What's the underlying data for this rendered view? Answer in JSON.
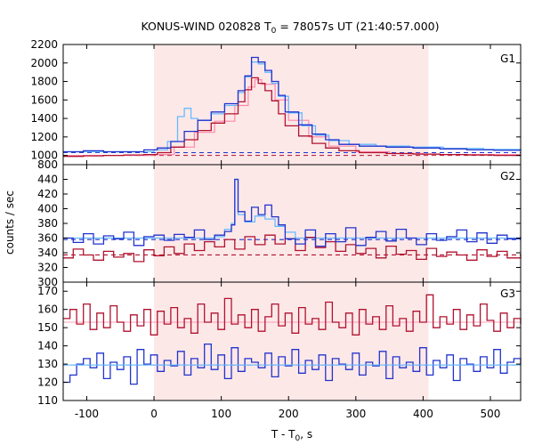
{
  "chart_data": {
    "type": "line",
    "title_main": "KONUS-WIND 020828 T",
    "title_sub": "0",
    "title_rest": " = 78057s UT (21:40:57.000)",
    "xlabel_main": "T - T",
    "xlabel_sub": "0",
    "xlabel_rest": ", s",
    "ylabel": "counts / sec",
    "xlim": [
      -135,
      545
    ],
    "xticks": [
      -100,
      0,
      100,
      200,
      300,
      400,
      500
    ],
    "interval_shading": [
      0,
      408
    ],
    "colors": {
      "shade": "#fde8e8",
      "dark_red": "#b0122e",
      "blue": "#2233cc",
      "light_blue": "#66bbff",
      "pink": "#ff88aa"
    },
    "panels": [
      {
        "label": "G1",
        "ylim": [
          900,
          2200
        ],
        "yticks": [
          1000,
          1200,
          1400,
          1600,
          1800,
          2000,
          2200
        ],
        "bottom_tick_label": "800",
        "blue_background": 1030,
        "red_background": 1000,
        "blue_counts": {
          "x": [
            -135,
            -105,
            -75,
            -45,
            -15,
            5,
            25,
            45,
            65,
            85,
            105,
            125,
            135,
            145,
            155,
            165,
            175,
            185,
            195,
            215,
            235,
            255,
            275,
            305,
            345,
            385,
            425,
            465,
            505,
            545
          ],
          "y": [
            1040,
            1050,
            1040,
            1040,
            1060,
            1080,
            1150,
            1260,
            1380,
            1470,
            1560,
            1700,
            1860,
            2060,
            2010,
            1920,
            1800,
            1650,
            1470,
            1330,
            1230,
            1170,
            1120,
            1100,
            1090,
            1080,
            1070,
            1060,
            1055,
            1050
          ]
        },
        "light_blue_model": {
          "x": [
            -135,
            0,
            20,
            35,
            45,
            55,
            65,
            85,
            105,
            125,
            135,
            145,
            155,
            165,
            175,
            185,
            200,
            220,
            240,
            260,
            290,
            330,
            380,
            430,
            490,
            545
          ],
          "y": [
            1040,
            1060,
            1150,
            1420,
            1510,
            1400,
            1380,
            1450,
            1540,
            1680,
            1850,
            2010,
            1990,
            1900,
            1780,
            1640,
            1460,
            1320,
            1220,
            1160,
            1120,
            1100,
            1090,
            1075,
            1065,
            1060
          ]
        },
        "red_counts": {
          "x": [
            -135,
            -105,
            -75,
            -45,
            -15,
            5,
            25,
            45,
            65,
            85,
            105,
            125,
            135,
            145,
            155,
            165,
            175,
            185,
            195,
            215,
            235,
            255,
            275,
            305,
            345,
            385,
            425,
            465,
            505,
            545
          ],
          "y": [
            990,
            995,
            1000,
            1005,
            1010,
            1030,
            1090,
            1170,
            1270,
            1350,
            1450,
            1580,
            1710,
            1840,
            1780,
            1700,
            1590,
            1450,
            1320,
            1210,
            1130,
            1080,
            1050,
            1030,
            1020,
            1015,
            1010,
            1005,
            1000,
            995
          ]
        },
        "pink_model": {
          "x": [
            -135,
            0,
            30,
            60,
            90,
            120,
            140,
            150,
            160,
            180,
            200,
            230,
            260,
            300,
            350,
            400,
            545
          ],
          "y": [
            1000,
            1010,
            1090,
            1250,
            1370,
            1540,
            1740,
            1820,
            1770,
            1600,
            1380,
            1200,
            1100,
            1040,
            1020,
            1010,
            1000
          ]
        }
      },
      {
        "label": "G2",
        "ylim": [
          300,
          460
        ],
        "yticks": [
          300,
          320,
          340,
          360,
          380,
          400,
          420,
          440
        ],
        "blue_background": 358,
        "red_background": 337,
        "blue_counts": {
          "x": [
            -135,
            -120,
            -105,
            -90,
            -75,
            -60,
            -45,
            -30,
            -15,
            0,
            15,
            30,
            45,
            60,
            75,
            90,
            105,
            115,
            120,
            125,
            135,
            145,
            155,
            165,
            175,
            185,
            195,
            210,
            225,
            240,
            255,
            270,
            285,
            300,
            315,
            330,
            345,
            360,
            375,
            390,
            405,
            420,
            435,
            450,
            465,
            480,
            495,
            510,
            525,
            545
          ],
          "y": [
            360,
            354,
            366,
            352,
            363,
            359,
            368,
            350,
            362,
            364,
            357,
            365,
            361,
            371,
            358,
            364,
            369,
            378,
            440,
            396,
            383,
            402,
            392,
            405,
            389,
            378,
            359,
            352,
            371,
            349,
            366,
            355,
            374,
            350,
            361,
            369,
            356,
            372,
            360,
            351,
            366,
            357,
            362,
            371,
            355,
            367,
            353,
            364,
            359,
            362
          ]
        },
        "light_blue_model": {
          "x": [
            -135,
            0,
            90,
            105,
            115,
            120,
            125,
            135,
            150,
            165,
            180,
            195,
            210,
            300,
            400,
            545
          ],
          "y": [
            360,
            360,
            362,
            372,
            380,
            440,
            392,
            382,
            390,
            386,
            376,
            368,
            360,
            360,
            360,
            360
          ]
        },
        "red_counts": {
          "x": [
            -135,
            -120,
            -105,
            -90,
            -75,
            -60,
            -45,
            -30,
            -15,
            0,
            15,
            30,
            45,
            60,
            75,
            90,
            105,
            120,
            135,
            150,
            165,
            180,
            195,
            210,
            225,
            240,
            255,
            270,
            285,
            300,
            315,
            330,
            345,
            360,
            375,
            390,
            405,
            420,
            435,
            450,
            465,
            480,
            495,
            510,
            525,
            545
          ],
          "y": [
            333,
            345,
            337,
            330,
            342,
            334,
            339,
            328,
            344,
            336,
            348,
            339,
            352,
            343,
            355,
            348,
            358,
            345,
            362,
            351,
            364,
            352,
            359,
            343,
            361,
            347,
            355,
            342,
            351,
            339,
            346,
            333,
            349,
            338,
            343,
            331,
            346,
            335,
            341,
            337,
            330,
            344,
            335,
            342,
            333,
            338
          ]
        }
      },
      {
        "label": "G3",
        "ylim": [
          110,
          175
        ],
        "yticks": [
          110,
          120,
          130,
          140,
          150,
          160,
          170
        ],
        "blue_background": 129.5,
        "red_background": 153,
        "blue_counts": {
          "x": [
            -135,
            -125,
            -115,
            -105,
            -95,
            -85,
            -75,
            -65,
            -55,
            -45,
            -35,
            -25,
            -15,
            -5,
            5,
            15,
            25,
            35,
            45,
            55,
            65,
            75,
            85,
            95,
            105,
            115,
            125,
            135,
            145,
            155,
            165,
            175,
            185,
            195,
            205,
            215,
            225,
            235,
            245,
            255,
            265,
            275,
            285,
            295,
            305,
            315,
            325,
            335,
            345,
            355,
            365,
            375,
            385,
            395,
            405,
            415,
            425,
            435,
            445,
            455,
            465,
            475,
            485,
            495,
            505,
            515,
            525,
            535,
            545
          ],
          "y": [
            120,
            124,
            130,
            133,
            128,
            136,
            122,
            131,
            127,
            134,
            119,
            138,
            130,
            135,
            126,
            132,
            129,
            137,
            124,
            133,
            128,
            141,
            127,
            135,
            122,
            139,
            126,
            133,
            131,
            128,
            136,
            123,
            134,
            129,
            138,
            125,
            132,
            127,
            135,
            121,
            133,
            130,
            127,
            136,
            124,
            131,
            129,
            137,
            122,
            134,
            128,
            131,
            126,
            139,
            124,
            132,
            128,
            135,
            121,
            133,
            130,
            126,
            134,
            128,
            138,
            125,
            131,
            133,
            130
          ]
        },
        "red_counts": {
          "x": [
            -135,
            -125,
            -115,
            -105,
            -95,
            -85,
            -75,
            -65,
            -55,
            -45,
            -35,
            -25,
            -15,
            -5,
            5,
            15,
            25,
            35,
            45,
            55,
            65,
            75,
            85,
            95,
            105,
            115,
            125,
            135,
            145,
            155,
            165,
            175,
            185,
            195,
            205,
            215,
            225,
            235,
            245,
            255,
            265,
            275,
            285,
            295,
            305,
            315,
            325,
            335,
            345,
            355,
            365,
            375,
            385,
            395,
            405,
            415,
            425,
            435,
            445,
            455,
            465,
            475,
            485,
            495,
            505,
            515,
            525,
            535,
            545
          ],
          "y": [
            155,
            160,
            152,
            163,
            149,
            158,
            150,
            162,
            153,
            148,
            157,
            151,
            160,
            146,
            159,
            152,
            161,
            150,
            155,
            147,
            163,
            153,
            158,
            149,
            166,
            152,
            157,
            150,
            160,
            148,
            156,
            163,
            151,
            158,
            147,
            161,
            152,
            155,
            149,
            164,
            153,
            150,
            158,
            146,
            160,
            152,
            156,
            149,
            162,
            151,
            155,
            148,
            159,
            153,
            168,
            150,
            156,
            152,
            160,
            149,
            157,
            151,
            163,
            154,
            148,
            158,
            150,
            155,
            152
          ]
        }
      }
    ]
  }
}
